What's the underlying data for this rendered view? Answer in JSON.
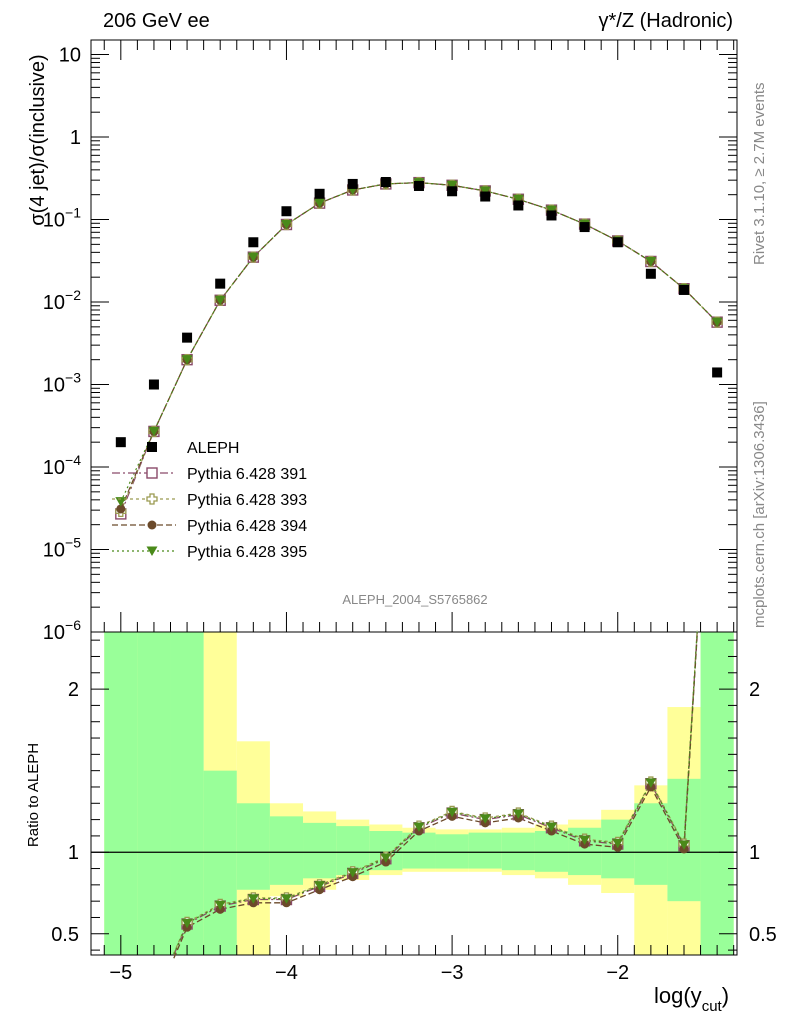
{
  "header": {
    "left": "206 GeV ee",
    "right": "γ*/Z (Hadronic)"
  },
  "side_labels": {
    "top": "Rivet 3.1.10, ≥ 2.7M events",
    "bottom": "mcplots.cern.ch [arXiv:1306.3436]"
  },
  "analysis_tag": "ALEPH_2004_S5765862",
  "colors": {
    "data": "#000000",
    "p391": "#8a4a6a",
    "p393": "#9a9a50",
    "p394": "#6b4a2a",
    "p395": "#4a8a1a",
    "band_inner": "#99ff99",
    "band_outer": "#ffff99"
  },
  "chart_data": [
    {
      "type": "scatter",
      "name": "main",
      "ylabel": "σ(4 jet)/σ(inclusive)",
      "xlim": [
        -5.18,
        -1.28
      ],
      "ylim": [
        1e-06,
        15
      ],
      "log_y": true,
      "y_ticks": [
        {
          "v": 1e-06,
          "base": "10",
          "exp": "−6"
        },
        {
          "v": 1e-05,
          "base": "10",
          "exp": "−5"
        },
        {
          "v": 0.0001,
          "base": "10",
          "exp": "−4"
        },
        {
          "v": 0.001,
          "base": "10",
          "exp": "−3"
        },
        {
          "v": 0.01,
          "base": "10",
          "exp": "−2"
        },
        {
          "v": 0.1,
          "base": "10",
          "exp": "−1"
        },
        {
          "v": 1,
          "base": "1",
          "exp": ""
        },
        {
          "v": 10,
          "base": "10",
          "exp": ""
        }
      ],
      "legend": [
        {
          "label": "ALEPH",
          "key": "data",
          "marker": "square_filled"
        },
        {
          "label": "Pythia 6.428 391",
          "key": "p391",
          "marker": "square_open"
        },
        {
          "label": "Pythia 6.428 393",
          "key": "p393",
          "marker": "cross_open"
        },
        {
          "label": "Pythia 6.428 394",
          "key": "p394",
          "marker": "circle_filled"
        },
        {
          "label": "Pythia 6.428 395",
          "key": "p395",
          "marker": "triangle_down"
        }
      ],
      "data": {
        "x": [
          -5.0,
          -4.8,
          -4.6,
          -4.4,
          -4.2,
          -4.0,
          -3.8,
          -3.6,
          -3.4,
          -3.2,
          -3.0,
          -2.8,
          -2.6,
          -2.4,
          -2.2,
          -2.0,
          -1.8,
          -1.6,
          -1.4
        ],
        "y": [
          0.0002,
          0.001,
          0.0037,
          0.0167,
          0.053,
          0.126,
          0.205,
          0.27,
          0.285,
          0.255,
          0.22,
          0.19,
          0.148,
          0.112,
          0.081,
          0.053,
          0.022,
          0.014,
          0.0014
        ]
      },
      "mc": {
        "x": [
          -5.0,
          -4.8,
          -4.6,
          -4.4,
          -4.2,
          -4.0,
          -3.8,
          -3.6,
          -3.4,
          -3.2,
          -3.0,
          -2.8,
          -2.6,
          -2.4,
          -2.2,
          -2.0,
          -1.8,
          -1.6,
          -1.4
        ],
        "p391": [
          2.7e-05,
          0.00027,
          0.002,
          0.0105,
          0.035,
          0.087,
          0.158,
          0.228,
          0.27,
          0.28,
          0.26,
          0.222,
          0.176,
          0.13,
          0.088,
          0.055,
          0.031,
          0.0145,
          0.0057
        ],
        "p393": [
          2.9e-05,
          0.00027,
          0.002,
          0.0105,
          0.035,
          0.087,
          0.158,
          0.228,
          0.27,
          0.28,
          0.26,
          0.222,
          0.176,
          0.13,
          0.088,
          0.055,
          0.031,
          0.0145,
          0.0057
        ],
        "p394": [
          3.1e-05,
          0.00027,
          0.002,
          0.0105,
          0.035,
          0.087,
          0.158,
          0.228,
          0.27,
          0.28,
          0.26,
          0.222,
          0.176,
          0.13,
          0.088,
          0.055,
          0.031,
          0.0145,
          0.0057
        ],
        "p395": [
          3.8e-05,
          0.00027,
          0.002,
          0.0105,
          0.035,
          0.087,
          0.158,
          0.228,
          0.27,
          0.28,
          0.26,
          0.222,
          0.176,
          0.13,
          0.088,
          0.055,
          0.031,
          0.0145,
          0.0057
        ]
      }
    },
    {
      "type": "line",
      "name": "ratio",
      "ylabel": "Ratio to ALEPH",
      "xlabel": "log(y",
      "xlabel_sub": "cut",
      "xlabel_close": ")",
      "xlim": [
        -5.18,
        -1.28
      ],
      "ylim": [
        0.37,
        2.35
      ],
      "y_ticks": [
        {
          "v": 0.5,
          "label": "0.5"
        },
        {
          "v": 1,
          "label": "1"
        },
        {
          "v": 2,
          "label": "2"
        }
      ],
      "x_ticks": [
        {
          "v": -5,
          "label": "−5"
        },
        {
          "v": -4,
          "label": "−4"
        },
        {
          "v": -3,
          "label": "−3"
        },
        {
          "v": -2,
          "label": "−2"
        }
      ],
      "bands": {
        "edges": [
          -5.1,
          -4.9,
          -4.7,
          -4.5,
          -4.3,
          -4.1,
          -3.9,
          -3.7,
          -3.5,
          -3.3,
          -3.1,
          -2.9,
          -2.7,
          -2.5,
          -2.3,
          -2.1,
          -1.9,
          -1.7,
          -1.5,
          -1.3
        ],
        "inner_lo": [
          0.37,
          0.37,
          0.37,
          0.37,
          0.77,
          0.8,
          0.84,
          0.86,
          0.89,
          0.9,
          0.9,
          0.9,
          0.89,
          0.88,
          0.86,
          0.84,
          0.8,
          0.7,
          0.37
        ],
        "inner_hi": [
          2.35,
          2.35,
          2.35,
          1.5,
          1.3,
          1.22,
          1.18,
          1.16,
          1.13,
          1.12,
          1.11,
          1.12,
          1.12,
          1.13,
          1.15,
          1.2,
          1.3,
          1.45,
          2.35
        ],
        "outer_lo": [
          0.37,
          0.37,
          0.37,
          0.37,
          0.37,
          0.73,
          0.77,
          0.83,
          0.86,
          0.88,
          0.88,
          0.88,
          0.86,
          0.84,
          0.8,
          0.75,
          0.37,
          0.37,
          0.37
        ],
        "outer_hi": [
          2.35,
          2.35,
          2.35,
          2.35,
          1.68,
          1.3,
          1.25,
          1.2,
          1.17,
          1.15,
          1.14,
          1.14,
          1.15,
          1.17,
          1.2,
          1.26,
          1.41,
          1.89,
          2.35
        ]
      },
      "series": {
        "x": [
          -4.6,
          -4.4,
          -4.2,
          -4.0,
          -3.8,
          -3.6,
          -3.4,
          -3.2,
          -3.0,
          -2.8,
          -2.6,
          -2.4,
          -2.2,
          -2.0,
          -1.8,
          -1.6
        ],
        "y": [
          0.56,
          0.67,
          0.71,
          0.71,
          0.79,
          0.87,
          0.96,
          1.15,
          1.24,
          1.2,
          1.23,
          1.15,
          1.07,
          1.05,
          1.42,
          1.04
        ],
        "lead_x": [
          -4.68,
          -4.6
        ],
        "lead_y": [
          0.37,
          0.56
        ],
        "tail_x": [
          -1.6,
          -1.52
        ],
        "tail_y": [
          1.04,
          2.35
        ],
        "point_y_offsets": {
          "p391": 0.0,
          "p393": 0.01,
          "p394": -0.02,
          "p395": 0.005
        }
      }
    }
  ]
}
